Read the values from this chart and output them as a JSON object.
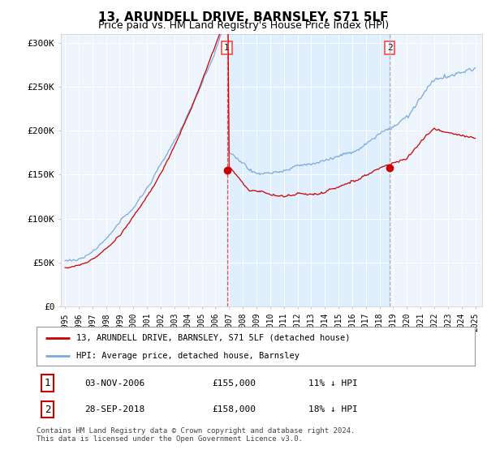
{
  "title": "13, ARUNDELL DRIVE, BARNSLEY, S71 5LF",
  "subtitle": "Price paid vs. HM Land Registry's House Price Index (HPI)",
  "ylim": [
    0,
    310000
  ],
  "yticks": [
    0,
    50000,
    100000,
    150000,
    200000,
    250000,
    300000
  ],
  "ytick_labels": [
    "£0",
    "£50K",
    "£100K",
    "£150K",
    "£200K",
    "£250K",
    "£300K"
  ],
  "hpi_color": "#7aaadd",
  "price_color": "#cc0000",
  "vline1_color": "#ff4444",
  "vline1_style": "--",
  "vline2_color": "#aaaaaa",
  "vline2_style": "--",
  "shade_color": "#ddeeff",
  "bg_color": "#eef4fb",
  "sale1_year": 2006.84,
  "sale1_price": 155000,
  "sale2_year": 2018.74,
  "sale2_price": 158000,
  "legend_label_price": "13, ARUNDELL DRIVE, BARNSLEY, S71 5LF (detached house)",
  "legend_label_hpi": "HPI: Average price, detached house, Barnsley",
  "table_row1": [
    "1",
    "03-NOV-2006",
    "£155,000",
    "11% ↓ HPI"
  ],
  "table_row2": [
    "2",
    "28-SEP-2018",
    "£158,000",
    "18% ↓ HPI"
  ],
  "footnote": "Contains HM Land Registry data © Crown copyright and database right 2024.\nThis data is licensed under the Open Government Licence v3.0.",
  "title_fontsize": 11,
  "subtitle_fontsize": 9,
  "tick_fontsize": 8
}
